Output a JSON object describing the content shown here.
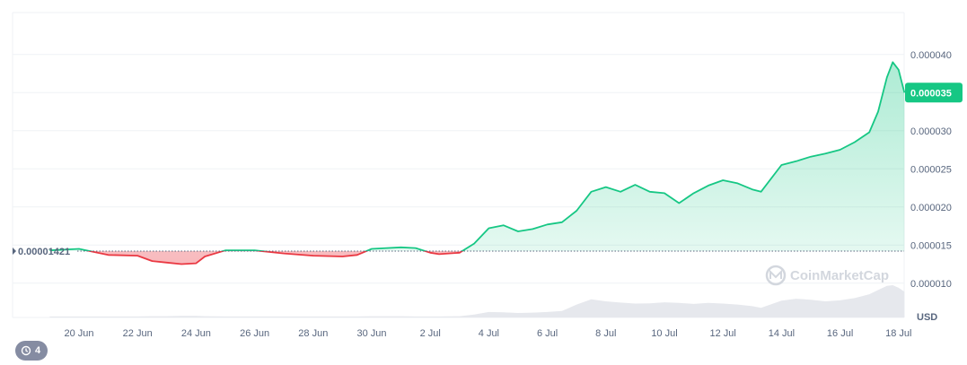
{
  "chart_data": {
    "type": "area",
    "x_ticks": [
      "20 Jun",
      "22 Jun",
      "24 Jun",
      "26 Jun",
      "28 Jun",
      "30 Jun",
      "2 Jul",
      "4 Jul",
      "6 Jul",
      "8 Jul",
      "10 Jul",
      "12 Jul",
      "14 Jul",
      "16 Jul",
      "18 Jul"
    ],
    "y_ticks": [
      "0.000040",
      "0.000035",
      "0.000030",
      "0.000025",
      "0.000020",
      "0.000015",
      "0.000010"
    ],
    "y_tick_values": [
      4e-05,
      3.5e-05,
      3e-05,
      2.5e-05,
      2e-05,
      1.5e-05,
      1e-05
    ],
    "ylim": [
      5.5e-06,
      4.55e-05
    ],
    "baseline": {
      "value": 1.421e-05,
      "label": "0.00001421"
    },
    "current_price": {
      "value": 3.5e-05,
      "label": "0.000035"
    },
    "unit_label": "USD",
    "series": [
      {
        "x": [
          "19 Jun",
          "20 Jun",
          "21 Jun",
          "22 Jun",
          "22.5 Jun",
          "23 Jun",
          "23.5 Jun",
          "24 Jun",
          "24.3 Jun",
          "25 Jun",
          "26 Jun",
          "27 Jun",
          "28 Jun",
          "29 Jun",
          "29.5 Jun",
          "30 Jun",
          "1 Jul",
          "1.5 Jul",
          "2 Jul",
          "2.3 Jul",
          "3 Jul",
          "3.5 Jul",
          "4 Jul",
          "4.5 Jul",
          "5 Jul",
          "5.5 Jul",
          "6 Jul",
          "6.5 Jul",
          "7 Jul",
          "7.5 Jul",
          "8 Jul",
          "8.5 Jul",
          "9 Jul",
          "9.5 Jul",
          "10 Jul",
          "10.5 Jul",
          "11 Jul",
          "11.5 Jul",
          "12 Jul",
          "12.5 Jul",
          "13 Jul",
          "13.3 Jul",
          "14 Jul",
          "14.5 Jul",
          "15 Jul",
          "15.5 Jul",
          "16 Jul",
          "16.5 Jul",
          "17 Jul",
          "17.3 Jul",
          "17.6 Jul",
          "17.8 Jul",
          "18 Jul",
          "18.2 Jul"
        ],
        "values": [
          1.43e-05,
          1.45e-05,
          1.37e-05,
          1.36e-05,
          1.29e-05,
          1.27e-05,
          1.25e-05,
          1.26e-05,
          1.35e-05,
          1.43e-05,
          1.43e-05,
          1.39e-05,
          1.36e-05,
          1.35e-05,
          1.37e-05,
          1.45e-05,
          1.47e-05,
          1.46e-05,
          1.4e-05,
          1.38e-05,
          1.4e-05,
          1.52e-05,
          1.72e-05,
          1.76e-05,
          1.68e-05,
          1.71e-05,
          1.77e-05,
          1.8e-05,
          1.95e-05,
          2.2e-05,
          2.26e-05,
          2.2e-05,
          2.29e-05,
          2.2e-05,
          2.18e-05,
          2.05e-05,
          2.18e-05,
          2.28e-05,
          2.35e-05,
          2.31e-05,
          2.23e-05,
          2.2e-05,
          2.55e-05,
          2.6e-05,
          2.66e-05,
          2.7e-05,
          2.75e-05,
          2.85e-05,
          2.98e-05,
          3.25e-05,
          3.7e-05,
          3.9e-05,
          3.8e-05,
          3.5e-05
        ]
      }
    ],
    "volume": [
      0.03,
      0.03,
      0.03,
      0.03,
      0.04,
      0.04,
      0.05,
      0.05,
      0.04,
      0.03,
      0.03,
      0.03,
      0.03,
      0.03,
      0.03,
      0.04,
      0.04,
      0.03,
      0.03,
      0.03,
      0.04,
      0.09,
      0.17,
      0.16,
      0.14,
      0.15,
      0.17,
      0.2,
      0.4,
      0.56,
      0.5,
      0.46,
      0.43,
      0.44,
      0.47,
      0.45,
      0.42,
      0.45,
      0.43,
      0.4,
      0.35,
      0.3,
      0.52,
      0.58,
      0.55,
      0.5,
      0.53,
      0.6,
      0.72,
      0.85,
      0.98,
      1.0,
      0.92,
      0.8
    ],
    "watermark": "CoinMarketCap"
  },
  "history_chip": {
    "label": "4",
    "icon": "history-icon"
  },
  "colors": {
    "up_line": "#16c784",
    "down_line": "#ea3943",
    "up_fill": "#16c784",
    "down_fill": "#ea3943",
    "grid": "#eff2f5",
    "volume": "#e6e8ed"
  }
}
